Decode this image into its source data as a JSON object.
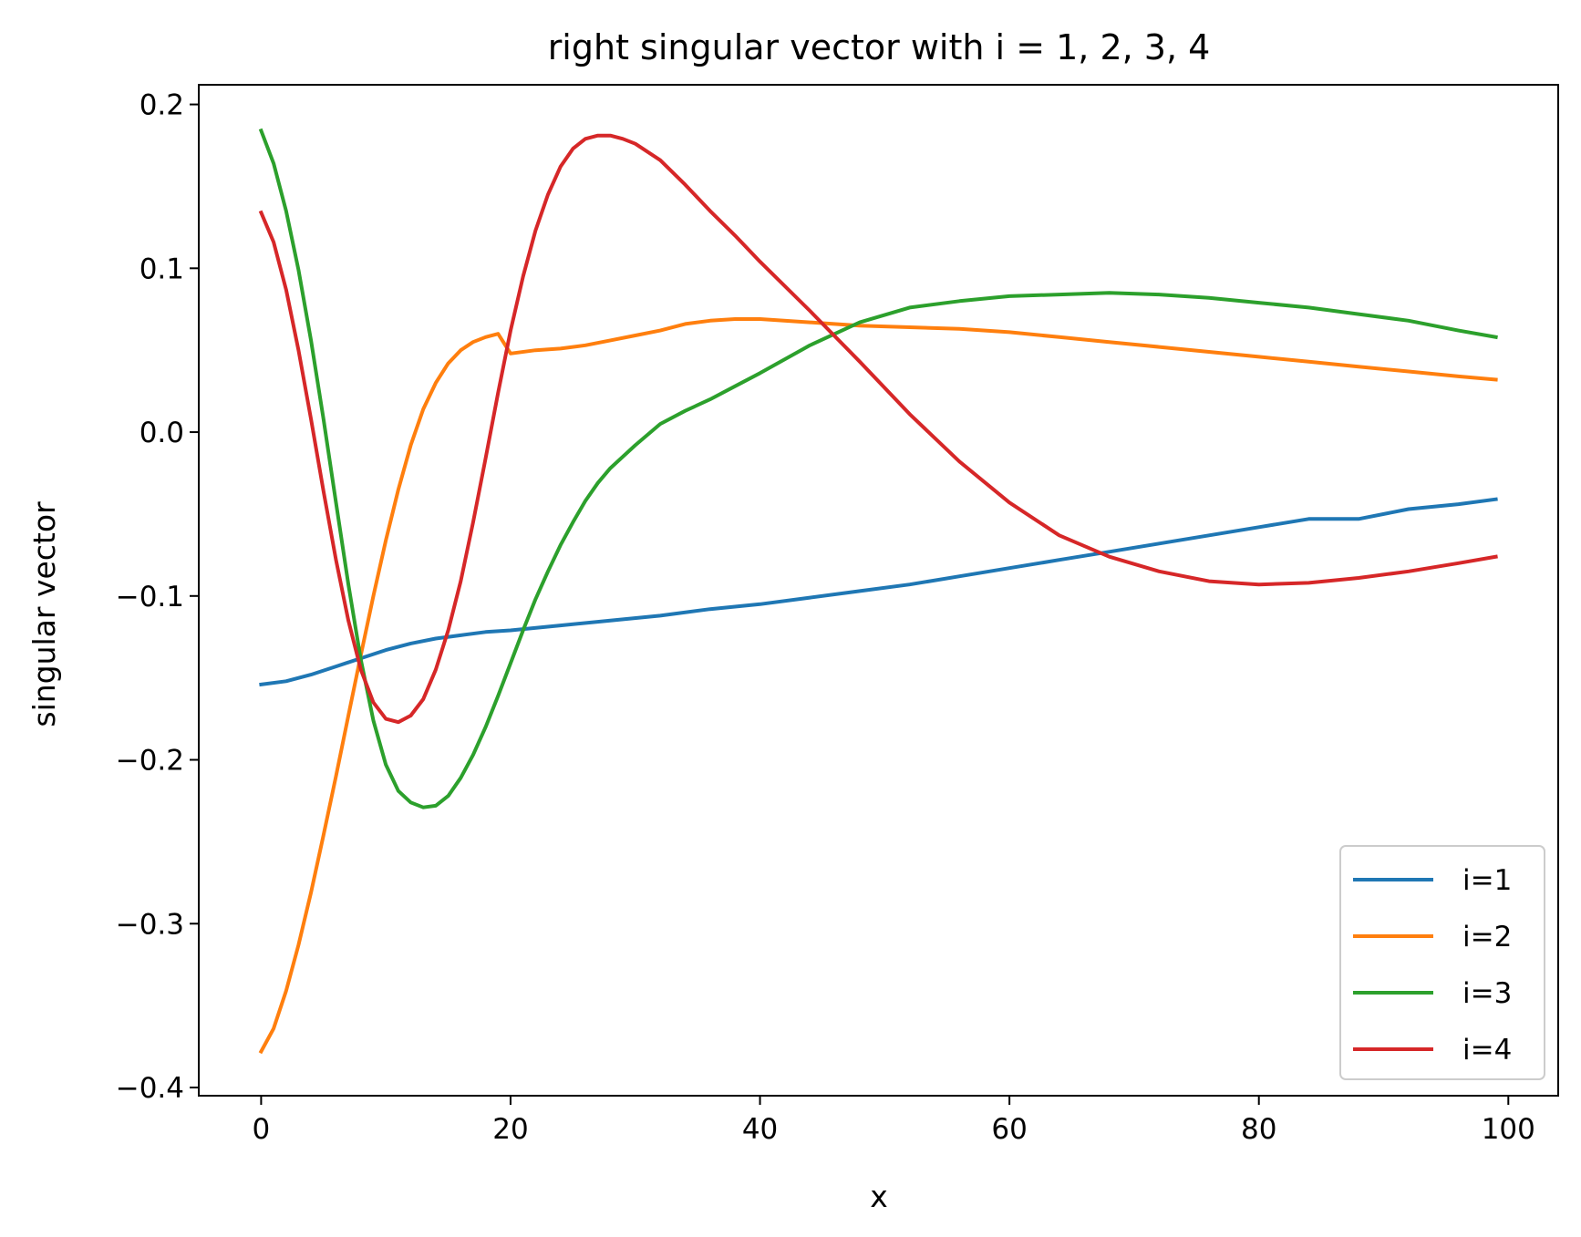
{
  "chart_data": {
    "type": "line",
    "title": "right singular vector with i = 1, 2, 3, 4",
    "xlabel": "x",
    "ylabel": "singular vector",
    "xlim": [
      -5,
      104
    ],
    "ylim": [
      -0.405,
      0.212
    ],
    "xticks": [
      0,
      20,
      40,
      60,
      80,
      100
    ],
    "xtick_labels": [
      "0",
      "20",
      "40",
      "60",
      "80",
      "100"
    ],
    "yticks": [
      -0.4,
      -0.3,
      -0.2,
      -0.1,
      0.0,
      0.1,
      0.2
    ],
    "ytick_labels": [
      "−0.4",
      "−0.3",
      "−0.2",
      "−0.1",
      "0.0",
      "0.1",
      "0.2"
    ],
    "grid": false,
    "legend_position": "lower-right",
    "series": [
      {
        "name": "i=1",
        "color": "#1f77b4",
        "x": [
          0,
          2,
          4,
          6,
          8,
          10,
          12,
          14,
          16,
          18,
          20,
          24,
          28,
          32,
          36,
          40,
          44,
          48,
          52,
          56,
          60,
          64,
          68,
          72,
          76,
          80,
          84,
          88,
          92,
          96,
          99
        ],
        "y": [
          -0.154,
          -0.152,
          -0.148,
          -0.143,
          -0.138,
          -0.133,
          -0.129,
          -0.126,
          -0.124,
          -0.122,
          -0.121,
          -0.118,
          -0.115,
          -0.112,
          -0.108,
          -0.105,
          -0.101,
          -0.097,
          -0.093,
          -0.088,
          -0.083,
          -0.078,
          -0.073,
          -0.068,
          -0.063,
          -0.058,
          -0.053,
          -0.053,
          -0.047,
          -0.044,
          -0.041
        ]
      },
      {
        "name": "i=2",
        "color": "#ff7f0e",
        "x": [
          0,
          1,
          2,
          3,
          4,
          5,
          6,
          7,
          8,
          9,
          10,
          11,
          12,
          13,
          14,
          15,
          16,
          17,
          18,
          19,
          20,
          22,
          24,
          26,
          28,
          30,
          32,
          34,
          36,
          38,
          40,
          44,
          48,
          52,
          56,
          60,
          64,
          68,
          72,
          76,
          80,
          84,
          88,
          92,
          96,
          99
        ],
        "y": [
          -0.378,
          -0.364,
          -0.341,
          -0.313,
          -0.281,
          -0.246,
          -0.21,
          -0.173,
          -0.136,
          -0.1,
          -0.066,
          -0.035,
          -0.008,
          0.014,
          0.03,
          0.042,
          0.05,
          0.055,
          0.058,
          0.06,
          0.048,
          0.05,
          0.051,
          0.053,
          0.056,
          0.059,
          0.062,
          0.066,
          0.068,
          0.069,
          0.069,
          0.067,
          0.065,
          0.064,
          0.063,
          0.061,
          0.058,
          0.055,
          0.052,
          0.049,
          0.046,
          0.043,
          0.04,
          0.037,
          0.034,
          0.032
        ]
      },
      {
        "name": "i=3",
        "color": "#2ca02c",
        "x": [
          0,
          1,
          2,
          3,
          4,
          5,
          6,
          7,
          8,
          9,
          10,
          11,
          12,
          13,
          14,
          15,
          16,
          17,
          18,
          19,
          20,
          21,
          22,
          23,
          24,
          25,
          26,
          27,
          28,
          30,
          32,
          34,
          36,
          38,
          40,
          44,
          48,
          52,
          56,
          60,
          64,
          68,
          72,
          76,
          80,
          84,
          88,
          92,
          96,
          99
        ],
        "y": [
          0.184,
          0.164,
          0.135,
          0.099,
          0.056,
          0.008,
          -0.043,
          -0.093,
          -0.139,
          -0.176,
          -0.203,
          -0.219,
          -0.226,
          -0.229,
          -0.228,
          -0.222,
          -0.211,
          -0.197,
          -0.18,
          -0.161,
          -0.141,
          -0.121,
          -0.102,
          -0.085,
          -0.069,
          -0.055,
          -0.042,
          -0.031,
          -0.022,
          -0.008,
          0.005,
          0.013,
          0.02,
          0.028,
          0.036,
          0.053,
          0.067,
          0.076,
          0.08,
          0.083,
          0.084,
          0.085,
          0.084,
          0.082,
          0.079,
          0.076,
          0.072,
          0.068,
          0.062,
          0.058
        ]
      },
      {
        "name": "i=4",
        "color": "#d62728",
        "x": [
          0,
          1,
          2,
          3,
          4,
          5,
          6,
          7,
          8,
          9,
          10,
          11,
          12,
          13,
          14,
          15,
          16,
          17,
          18,
          19,
          20,
          21,
          22,
          23,
          24,
          25,
          26,
          27,
          28,
          29,
          30,
          32,
          34,
          36,
          38,
          40,
          44,
          48,
          52,
          56,
          60,
          64,
          68,
          72,
          76,
          80,
          84,
          88,
          92,
          96,
          99
        ],
        "y": [
          0.134,
          0.116,
          0.087,
          0.05,
          0.008,
          -0.036,
          -0.078,
          -0.115,
          -0.145,
          -0.165,
          -0.175,
          -0.177,
          -0.173,
          -0.163,
          -0.145,
          -0.121,
          -0.091,
          -0.055,
          -0.016,
          0.024,
          0.062,
          0.095,
          0.123,
          0.145,
          0.162,
          0.173,
          0.179,
          0.181,
          0.181,
          0.179,
          0.176,
          0.166,
          0.151,
          0.135,
          0.12,
          0.104,
          0.074,
          0.043,
          0.011,
          -0.018,
          -0.043,
          -0.063,
          -0.076,
          -0.085,
          -0.091,
          -0.093,
          -0.092,
          -0.089,
          -0.085,
          -0.08,
          -0.076
        ]
      }
    ]
  }
}
